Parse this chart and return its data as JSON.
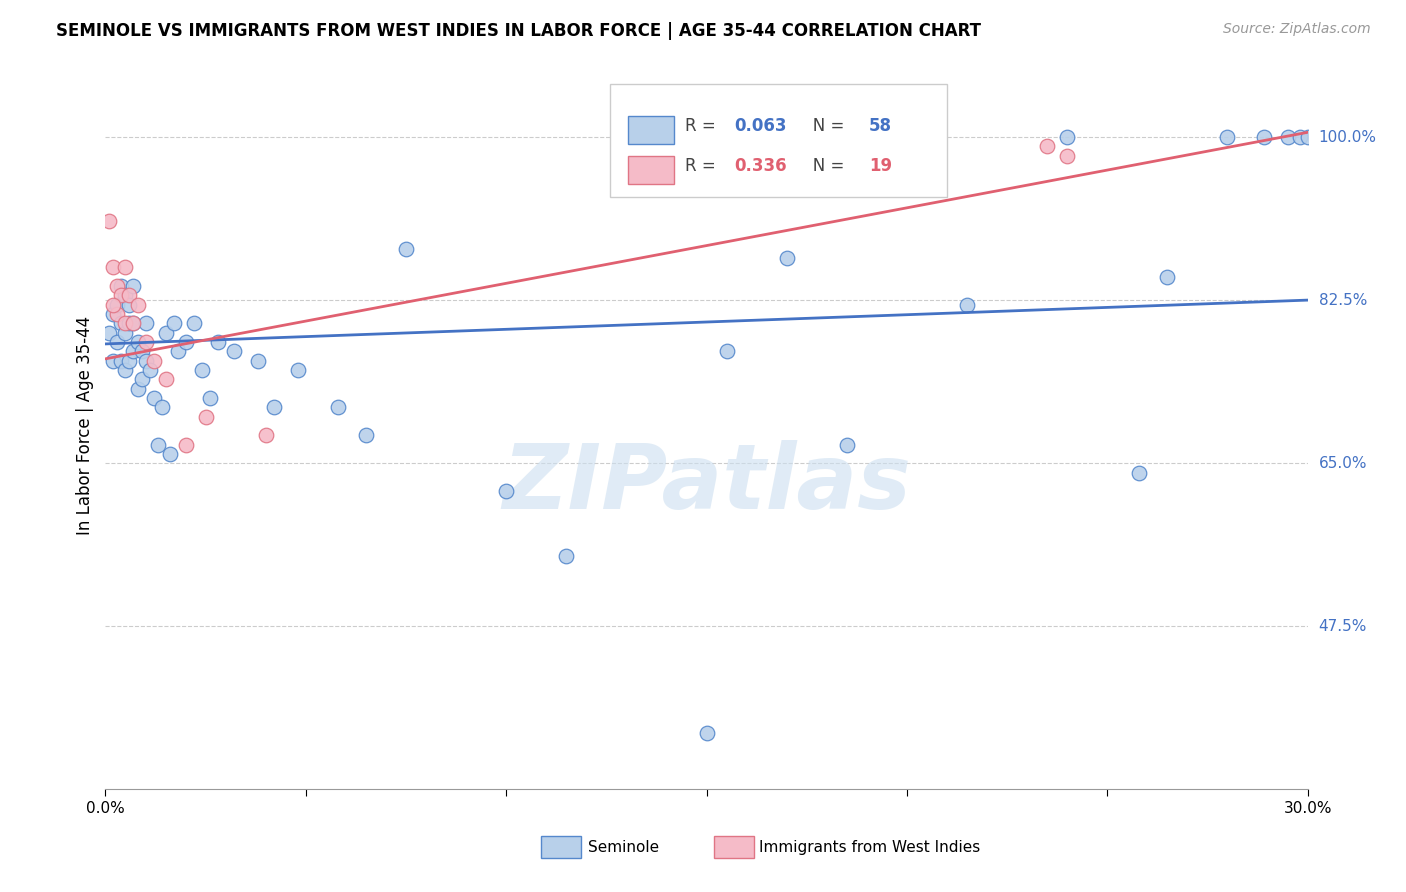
{
  "title": "SEMINOLE VS IMMIGRANTS FROM WEST INDIES IN LABOR FORCE | AGE 35-44 CORRELATION CHART",
  "source": "Source: ZipAtlas.com",
  "ylabel": "In Labor Force | Age 35-44",
  "xlim": [
    0.0,
    0.3
  ],
  "ylim": [
    0.3,
    1.08
  ],
  "ytick_positions": [
    0.475,
    0.65,
    0.825,
    1.0
  ],
  "ytick_labels": [
    "47.5%",
    "65.0%",
    "82.5%",
    "100.0%"
  ],
  "grid_color": "#cccccc",
  "blue_face_color": "#b8d0ea",
  "blue_edge_color": "#5588cc",
  "pink_face_color": "#f5bbc8",
  "pink_edge_color": "#e07585",
  "blue_line_color": "#4472c4",
  "pink_line_color": "#e06070",
  "legend_blue_r": "0.063",
  "legend_blue_n": "58",
  "legend_pink_r": "0.336",
  "legend_pink_n": "19",
  "blue_scatter_x": [
    0.001,
    0.002,
    0.002,
    0.003,
    0.003,
    0.004,
    0.004,
    0.004,
    0.005,
    0.005,
    0.005,
    0.006,
    0.006,
    0.006,
    0.007,
    0.007,
    0.007,
    0.008,
    0.008,
    0.009,
    0.009,
    0.01,
    0.01,
    0.011,
    0.012,
    0.013,
    0.014,
    0.015,
    0.016,
    0.017,
    0.018,
    0.02,
    0.022,
    0.024,
    0.026,
    0.028,
    0.032,
    0.038,
    0.042,
    0.048,
    0.058,
    0.065,
    0.075,
    0.1,
    0.115,
    0.155,
    0.17,
    0.185,
    0.215,
    0.24,
    0.258,
    0.265,
    0.28,
    0.289,
    0.295,
    0.298,
    0.15,
    0.3
  ],
  "blue_scatter_y": [
    0.79,
    0.76,
    0.81,
    0.82,
    0.78,
    0.84,
    0.8,
    0.76,
    0.83,
    0.79,
    0.75,
    0.82,
    0.8,
    0.76,
    0.84,
    0.8,
    0.77,
    0.78,
    0.73,
    0.77,
    0.74,
    0.8,
    0.76,
    0.75,
    0.72,
    0.67,
    0.71,
    0.79,
    0.66,
    0.8,
    0.77,
    0.78,
    0.8,
    0.75,
    0.72,
    0.78,
    0.77,
    0.76,
    0.71,
    0.75,
    0.71,
    0.68,
    0.88,
    0.62,
    0.55,
    0.77,
    0.87,
    0.67,
    0.82,
    1.0,
    0.64,
    0.85,
    1.0,
    1.0,
    1.0,
    1.0,
    0.36,
    1.0
  ],
  "pink_scatter_x": [
    0.001,
    0.002,
    0.003,
    0.003,
    0.004,
    0.005,
    0.005,
    0.006,
    0.007,
    0.008,
    0.01,
    0.012,
    0.015,
    0.02,
    0.025,
    0.04,
    0.235,
    0.24,
    0.002
  ],
  "pink_scatter_y": [
    0.91,
    0.86,
    0.84,
    0.81,
    0.83,
    0.86,
    0.8,
    0.83,
    0.8,
    0.82,
    0.78,
    0.76,
    0.74,
    0.67,
    0.7,
    0.68,
    0.99,
    0.98,
    0.82
  ],
  "blue_trend_x0": 0.0,
  "blue_trend_x1": 0.3,
  "blue_trend_y0": 0.778,
  "blue_trend_y1": 0.825,
  "pink_trend_x0": 0.0,
  "pink_trend_x1": 0.3,
  "pink_trend_y0": 0.762,
  "pink_trend_y1": 1.005,
  "watermark": "ZIPatlas",
  "marker_size": 110,
  "bottom_legend_seminole": "Seminole",
  "bottom_legend_wi": "Immigrants from West Indies"
}
